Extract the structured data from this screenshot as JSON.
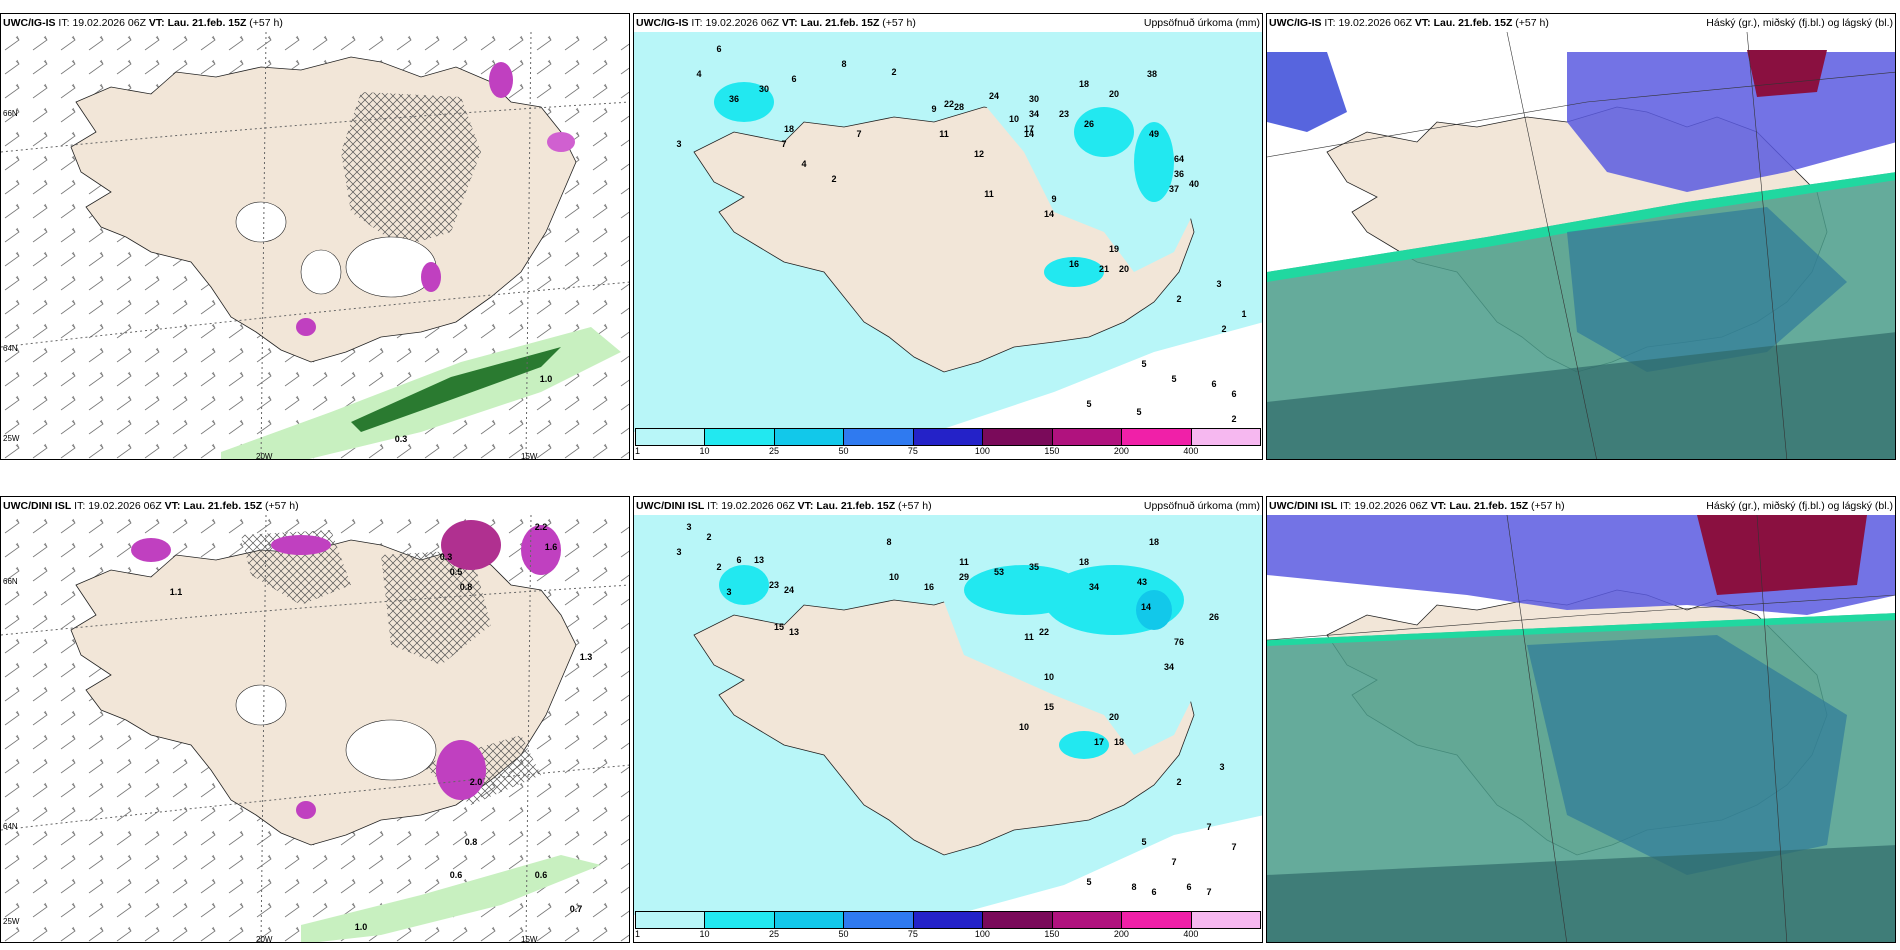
{
  "panels": [
    {
      "model": "UWC/IG-IS",
      "it_label": "IT:",
      "it_value": "19.02.2026 06Z",
      "vt_label": "VT:",
      "vt_value": "Lau. 21.feb. 15Z",
      "lead": "(+57 h)",
      "right_title": "",
      "type": "wind",
      "lon_labels": [
        "20W",
        "15W"
      ],
      "lat_labels": [
        "66N",
        "64N",
        "25W"
      ]
    },
    {
      "model": "UWC/IG-IS",
      "it_label": "IT:",
      "it_value": "19.02.2026 06Z",
      "vt_label": "VT:",
      "vt_value": "Lau. 21.feb. 15Z",
      "lead": "(+57 h)",
      "right_title": "Uppsöfnuð úrkoma (mm)",
      "type": "precip",
      "numbers": [
        "6",
        "4",
        "3",
        "8",
        "7",
        "2",
        "36",
        "30",
        "18",
        "6",
        "7",
        "4",
        "2",
        "9",
        "11",
        "12",
        "17",
        "22",
        "28",
        "23",
        "24",
        "18",
        "20",
        "38",
        "30",
        "34",
        "10",
        "14",
        "26",
        "49",
        "64",
        "36",
        "37",
        "40",
        "9",
        "14",
        "19",
        "21",
        "20",
        "3",
        "2",
        "2",
        "1",
        "5",
        "5",
        "5",
        "5",
        "6",
        "6",
        "2",
        "11",
        "16"
      ]
    },
    {
      "model": "UWC/IG-IS",
      "it_label": "IT:",
      "it_value": "19.02.2026 06Z",
      "vt_label": "VT:",
      "vt_value": "Lau. 21.feb. 15Z",
      "lead": "(+57 h)",
      "right_title": "Háský (gr.), miðský (fj.bl.) og lágský (bl.)",
      "type": "cloud"
    },
    {
      "model": "UWC/DINI ISL",
      "it_label": "IT:",
      "it_value": "19.02.2026 06Z",
      "vt_label": "VT:",
      "vt_value": "Lau. 21.feb. 15Z",
      "lead": "(+57 h)",
      "right_title": "",
      "type": "wind",
      "lon_labels": [
        "20W",
        "15W"
      ],
      "lat_labels": [
        "66N",
        "64N",
        "25W"
      ]
    },
    {
      "model": "UWC/DINI ISL",
      "it_label": "IT:",
      "it_value": "19.02.2026 06Z",
      "vt_label": "VT:",
      "vt_value": "Lau. 21.feb. 15Z",
      "lead": "(+57 h)",
      "right_title": "Uppsöfnuð úrkoma (mm)",
      "type": "precip",
      "numbers": [
        "3",
        "2",
        "3",
        "3",
        "2",
        "6",
        "13",
        "23",
        "24",
        "15",
        "13",
        "8",
        "11",
        "10",
        "16",
        "29",
        "53",
        "35",
        "18",
        "34",
        "43",
        "18",
        "14",
        "76",
        "34",
        "26",
        "10",
        "11",
        "22",
        "10",
        "15",
        "20",
        "17",
        "18",
        "3",
        "2",
        "7",
        "7",
        "5",
        "7",
        "8",
        "6",
        "6",
        "7",
        "5"
      ]
    },
    {
      "model": "UWC/DINI ISL",
      "it_label": "IT:",
      "it_value": "19.02.2026 06Z",
      "vt_label": "VT:",
      "vt_value": "Lau. 21.feb. 15Z",
      "lead": "(+57 h)",
      "right_title": "Háský (gr.), miðský (fj.bl.) og lágský (bl.)",
      "type": "cloud"
    }
  ],
  "wind_panel_values": [
    {
      "values": [
        "1.0",
        "0.3"
      ]
    },
    {
      "values": [
        "0.3",
        "0.5",
        "0.8",
        "2.2",
        "1.6",
        "1.3",
        "1.1",
        "2.0",
        "0.8",
        "0.6",
        "0.6",
        "0.7",
        "1.0"
      ]
    }
  ],
  "legend": {
    "colors": [
      "#b8f6f8",
      "#22e8f0",
      "#12c8ea",
      "#2f7af0",
      "#2422c8",
      "#7a0a5a",
      "#b0127e",
      "#f020a8",
      "#f6b8f0"
    ],
    "ticks": [
      "1",
      "10",
      "25",
      "50",
      "75",
      "100",
      "150",
      "200",
      "400"
    ]
  },
  "colors": {
    "land": "#f2e6d8",
    "precip_light": "#b8f6f8",
    "precip_mid": "#22e8f0",
    "high_cloud": "#4a9c8a",
    "mid_cloud": "#5a5ae0",
    "low_cloud": "#2f7a9a"
  }
}
